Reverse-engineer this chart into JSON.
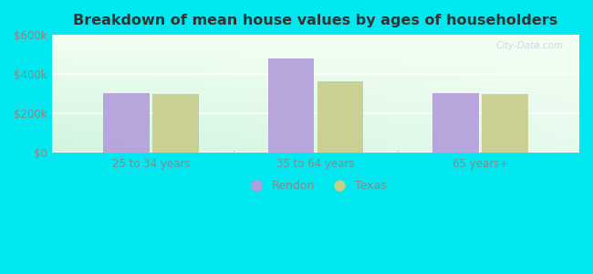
{
  "title": "Breakdown of mean house values by ages of householders",
  "categories": [
    "25 to 34 years",
    "35 to 64 years",
    "65 years+"
  ],
  "rendon_values": [
    305000,
    480000,
    305000
  ],
  "texas_values": [
    300000,
    362000,
    298000
  ],
  "ylim": [
    0,
    600000
  ],
  "yticks": [
    0,
    200000,
    400000,
    600000
  ],
  "ytick_labels": [
    "$0",
    "$200k",
    "$400k",
    "$600k"
  ],
  "rendon_color": "#b39ddb",
  "texas_color": "#c8cc8a",
  "background_outer": "#00e8f0",
  "title_color": "#333333",
  "tick_color": "#888888",
  "bar_width": 0.28,
  "legend_labels": [
    "Rendon",
    "Texas"
  ],
  "watermark": "City-Data.com"
}
